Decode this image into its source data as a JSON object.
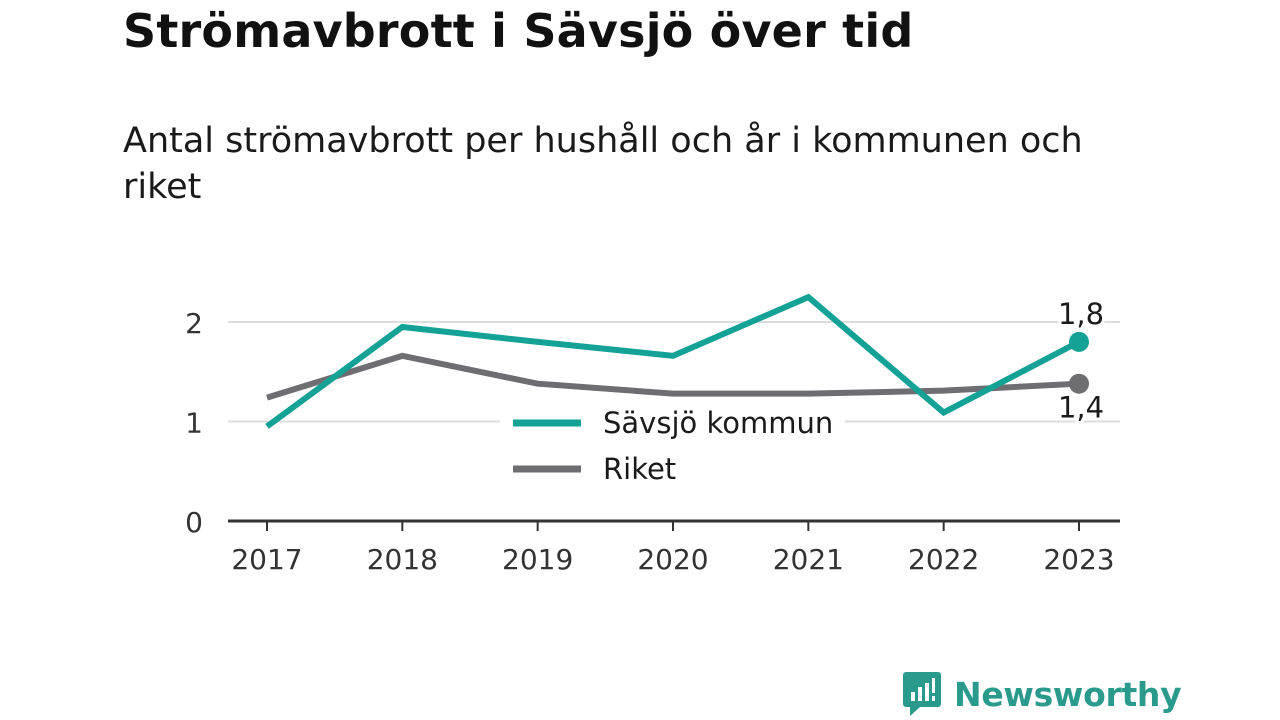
{
  "header": {
    "title": "Strömavbrott i Sävsjö över tid",
    "subtitle": "Antal strömavbrott per hushåll och år i kommunen och riket"
  },
  "brand": {
    "name": "Newsworthy",
    "icon": "newsworthy-logo-icon",
    "color": "#2a9a8c"
  },
  "chart_data": {
    "type": "line",
    "x": [
      "2017",
      "2018",
      "2019",
      "2020",
      "2021",
      "2022",
      "2023"
    ],
    "ylim": [
      0,
      2.3
    ],
    "yticks": [
      0,
      1,
      2
    ],
    "grid": true,
    "legend_position": "center",
    "series": [
      {
        "name": "Sävsjö kommun",
        "color": "#14a196",
        "values": [
          0.95,
          1.95,
          1.8,
          1.66,
          2.25,
          1.09,
          1.8
        ],
        "end_label": "1,8"
      },
      {
        "name": "Riket",
        "color": "#6e6d72",
        "values": [
          1.24,
          1.66,
          1.38,
          1.28,
          1.28,
          1.31,
          1.38
        ],
        "end_label": "1,4"
      }
    ]
  }
}
